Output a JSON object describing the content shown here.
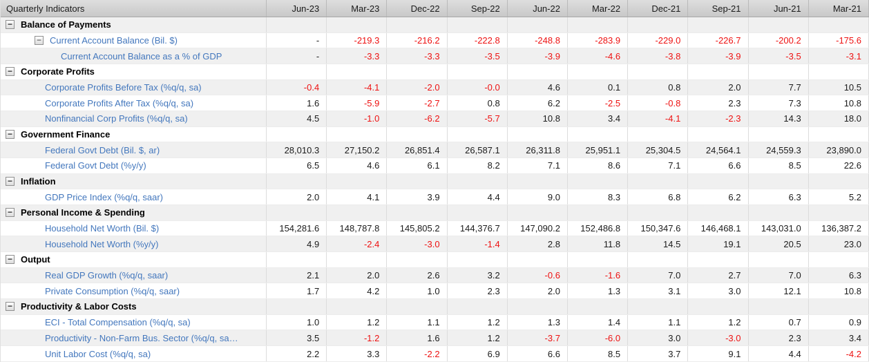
{
  "app": {
    "title": "Quarterly Indicators"
  },
  "colors": {
    "label_blue": "#4377bd",
    "negative_red": "#ee1111",
    "value_dark": "#1b1b1b",
    "stripe_gray": "#f0f0f0"
  },
  "icons": {
    "collapse_minus": "−"
  },
  "table": {
    "corner_label": "Quarterly Indicators",
    "columns": [
      "Jun-23",
      "Mar-23",
      "Dec-22",
      "Sep-22",
      "Jun-22",
      "Mar-22",
      "Dec-21",
      "Sep-21",
      "Jun-21",
      "Mar-21"
    ],
    "rows": [
      {
        "type": "category",
        "label": "Balance of Payments",
        "values": [
          "",
          "",
          "",
          "",
          "",
          "",
          "",
          "",
          "",
          ""
        ]
      },
      {
        "type": "parent",
        "label": "Current Account Balance (Bil. $)",
        "values": [
          "-",
          "-219.3",
          "-216.2",
          "-222.8",
          "-248.8",
          "-283.9",
          "-229.0",
          "-226.7",
          "-200.2",
          "-175.6"
        ]
      },
      {
        "type": "subleaf",
        "label": "Current Account Balance as a % of GDP",
        "values": [
          "-",
          "-3.3",
          "-3.3",
          "-3.5",
          "-3.9",
          "-4.6",
          "-3.8",
          "-3.9",
          "-3.5",
          "-3.1"
        ]
      },
      {
        "type": "category",
        "label": "Corporate Profits",
        "values": [
          "",
          "",
          "",
          "",
          "",
          "",
          "",
          "",
          "",
          ""
        ]
      },
      {
        "type": "leaf",
        "label": "Corporate Profits Before Tax (%q/q, sa)",
        "values": [
          "-0.4",
          "-4.1",
          "-2.0",
          "-0.0",
          "4.6",
          "0.1",
          "0.8",
          "2.0",
          "7.7",
          "10.5"
        ]
      },
      {
        "type": "leaf",
        "label": "Corporate Profits After Tax (%q/q, sa)",
        "values": [
          "1.6",
          "-5.9",
          "-2.7",
          "0.8",
          "6.2",
          "-2.5",
          "-0.8",
          "2.3",
          "7.3",
          "10.8"
        ]
      },
      {
        "type": "leaf",
        "label": "Nonfinancial Corp Profits (%q/q, sa)",
        "values": [
          "4.5",
          "-1.0",
          "-6.2",
          "-5.7",
          "10.8",
          "3.4",
          "-4.1",
          "-2.3",
          "14.3",
          "18.0"
        ]
      },
      {
        "type": "category",
        "label": "Government Finance",
        "values": [
          "",
          "",
          "",
          "",
          "",
          "",
          "",
          "",
          "",
          ""
        ]
      },
      {
        "type": "leaf",
        "label": "Federal Govt Debt (Bil. $, ar)",
        "values": [
          "28,010.3",
          "27,150.2",
          "26,851.4",
          "26,587.1",
          "26,311.8",
          "25,951.1",
          "25,304.5",
          "24,564.1",
          "24,559.3",
          "23,890.0"
        ]
      },
      {
        "type": "leaf",
        "label": "Federal Govt Debt (%y/y)",
        "values": [
          "6.5",
          "4.6",
          "6.1",
          "8.2",
          "7.1",
          "8.6",
          "7.1",
          "6.6",
          "8.5",
          "22.6"
        ]
      },
      {
        "type": "category",
        "label": "Inflation",
        "values": [
          "",
          "",
          "",
          "",
          "",
          "",
          "",
          "",
          "",
          ""
        ]
      },
      {
        "type": "leaf",
        "label": "GDP Price Index (%q/q, saar)",
        "values": [
          "2.0",
          "4.1",
          "3.9",
          "4.4",
          "9.0",
          "8.3",
          "6.8",
          "6.2",
          "6.3",
          "5.2"
        ]
      },
      {
        "type": "category",
        "label": "Personal Income & Spending",
        "values": [
          "",
          "",
          "",
          "",
          "",
          "",
          "",
          "",
          "",
          ""
        ]
      },
      {
        "type": "leaf",
        "label": "Household Net Worth (Bil. $)",
        "values": [
          "154,281.6",
          "148,787.8",
          "145,805.2",
          "144,376.7",
          "147,090.2",
          "152,486.8",
          "150,347.6",
          "146,468.1",
          "143,031.0",
          "136,387.2"
        ]
      },
      {
        "type": "leaf",
        "label": "Household Net Worth (%y/y)",
        "values": [
          "4.9",
          "-2.4",
          "-3.0",
          "-1.4",
          "2.8",
          "11.8",
          "14.5",
          "19.1",
          "20.5",
          "23.0"
        ]
      },
      {
        "type": "category",
        "label": "Output",
        "values": [
          "",
          "",
          "",
          "",
          "",
          "",
          "",
          "",
          "",
          ""
        ]
      },
      {
        "type": "leaf",
        "label": "Real GDP Growth (%q/q, saar)",
        "values": [
          "2.1",
          "2.0",
          "2.6",
          "3.2",
          "-0.6",
          "-1.6",
          "7.0",
          "2.7",
          "7.0",
          "6.3"
        ]
      },
      {
        "type": "leaf",
        "label": "Private Consumption (%q/q, saar)",
        "values": [
          "1.7",
          "4.2",
          "1.0",
          "2.3",
          "2.0",
          "1.3",
          "3.1",
          "3.0",
          "12.1",
          "10.8"
        ]
      },
      {
        "type": "category",
        "label": "Productivity & Labor Costs",
        "values": [
          "",
          "",
          "",
          "",
          "",
          "",
          "",
          "",
          "",
          ""
        ]
      },
      {
        "type": "leaf",
        "label": "ECI - Total Compensation (%q/q, sa)",
        "values": [
          "1.0",
          "1.2",
          "1.1",
          "1.2",
          "1.3",
          "1.4",
          "1.1",
          "1.2",
          "0.7",
          "0.9"
        ]
      },
      {
        "type": "leaf",
        "label": "Productivity - Non-Farm Bus. Sector (%q/q, sa…",
        "values": [
          "3.5",
          "-1.2",
          "1.6",
          "1.2",
          "-3.7",
          "-6.0",
          "3.0",
          "-3.0",
          "2.3",
          "3.4"
        ]
      },
      {
        "type": "leaf",
        "label": "Unit Labor Cost (%q/q, sa)",
        "values": [
          "2.2",
          "3.3",
          "-2.2",
          "6.9",
          "6.6",
          "8.5",
          "3.7",
          "9.1",
          "4.4",
          "-4.2"
        ]
      }
    ]
  }
}
